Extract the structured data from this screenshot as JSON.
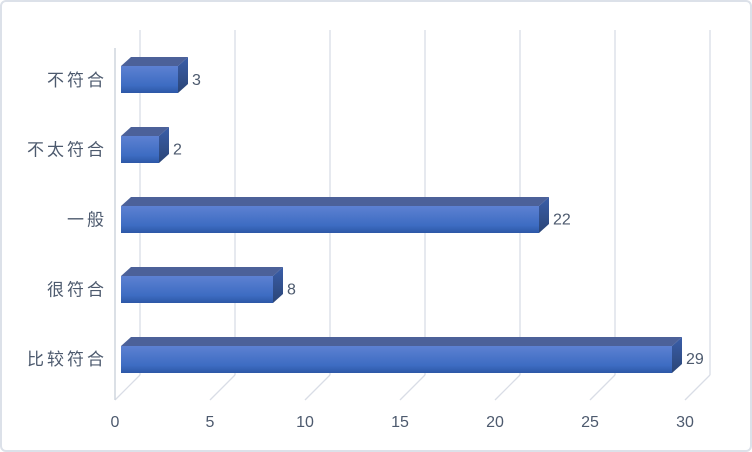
{
  "chart_data": {
    "type": "bar",
    "subtype": "3d-horizontal-bar",
    "title": "",
    "xlabel": "",
    "ylabel": "",
    "categories": [
      "不符合",
      "不太符合",
      "一般",
      "很符合",
      "比较符合"
    ],
    "values": [
      3,
      2,
      22,
      8,
      29
    ],
    "data_labels": [
      "3",
      "2",
      "22",
      "8",
      "29"
    ],
    "xlim": [
      0,
      30
    ],
    "x_ticks": [
      0,
      5,
      10,
      15,
      20,
      25,
      30
    ],
    "x_tick_labels": [
      "0",
      "5",
      "10",
      "15",
      "20",
      "25",
      "30"
    ],
    "grid": "vertical gridlines with 3d floor",
    "legend_position": "none",
    "orientation": "horizontal"
  },
  "colors": {
    "bar_front_top": "#5d81d2",
    "bar_front_mid": "#3d6cc2",
    "bar_front_bottom": "#2d57a6",
    "bar_top_face": "#4c6199",
    "bar_side_top": "#3a5ea9",
    "bar_side_bottom": "#2b4576",
    "gridline": "#d9dde6",
    "wall_edge": "#cfd5de",
    "label_text": "#4d5a6e",
    "frame_border": "#dce1e9",
    "background": "#ffffff"
  }
}
